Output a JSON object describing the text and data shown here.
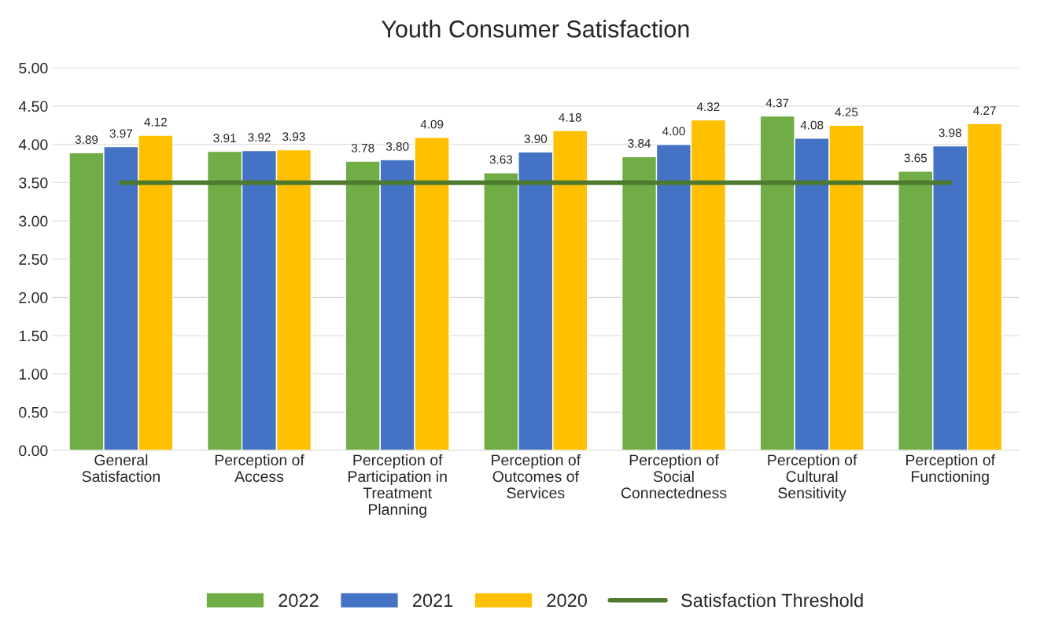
{
  "chart_data": {
    "type": "bar",
    "title": "Youth Consumer Satisfaction",
    "categories": [
      "General\nSatisfaction",
      "Perception of\nAccess",
      "Perception of\nParticipation in\nTreatment\nPlanning",
      "Perception of\nOutcomes of\nServices",
      "Perception of\nSocial\nConnectedness",
      "Perception of\nCultural\nSensitivity",
      "Perception of\nFunctioning"
    ],
    "series": [
      {
        "name": "2022",
        "color": "#70ad47",
        "values": [
          3.89,
          3.91,
          3.78,
          3.63,
          3.84,
          4.37,
          3.65
        ],
        "value_labels": [
          "3.89",
          "3.91",
          "3.78",
          "3.63",
          "3.84",
          "4.37",
          "3.65"
        ]
      },
      {
        "name": "2021",
        "color": "#4472c4",
        "values": [
          3.97,
          3.92,
          3.8,
          3.9,
          4.0,
          4.08,
          3.98
        ],
        "value_labels": [
          "3.97",
          "3.92",
          "3.80",
          "3.90",
          "4.00",
          "4.08",
          "3.98"
        ]
      },
      {
        "name": "2020",
        "color": "#ffc000",
        "values": [
          4.12,
          3.93,
          4.09,
          4.18,
          4.32,
          4.25,
          4.27
        ],
        "value_labels": [
          "4.12",
          "3.93",
          "4.09",
          "4.18",
          "4.32",
          "4.25",
          "4.27"
        ]
      },
      {
        "name": "Satisfaction Threshold",
        "type": "line",
        "color": "#4e7a2f",
        "values": [
          3.5,
          3.5,
          3.5,
          3.5,
          3.5,
          3.5,
          3.5
        ]
      }
    ],
    "ylim": [
      0,
      5
    ],
    "yticks": [
      {
        "value": 0,
        "label": "0.00"
      },
      {
        "value": 0.5,
        "label": "0.50"
      },
      {
        "value": 1,
        "label": "1.00"
      },
      {
        "value": 1.5,
        "label": "1.50"
      },
      {
        "value": 2,
        "label": "2.00"
      },
      {
        "value": 2.5,
        "label": "2.50"
      },
      {
        "value": 3,
        "label": "3.00"
      },
      {
        "value": 3.5,
        "label": "3.50"
      },
      {
        "value": 4,
        "label": "4.00"
      },
      {
        "value": 4.5,
        "label": "4.50"
      },
      {
        "value": 5,
        "label": "5.00"
      }
    ],
    "grid": "y",
    "legend": "bottom"
  }
}
